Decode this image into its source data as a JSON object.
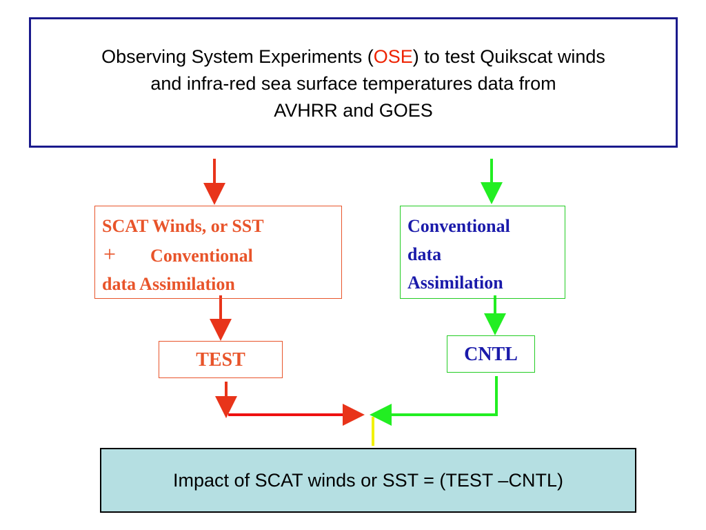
{
  "title": {
    "line1_start": "Observing System Experiments (",
    "highlight": "OSE",
    "line1_end": ") to test Quikscat winds",
    "line2": "and infra-red sea surface temperatures data from",
    "line3": "AVHRR and GOES"
  },
  "nodes": [
    {
      "lines": [
        "SCAT Winds, or SST",
        "+",
        "Conventional",
        "data Assimilation"
      ]
    },
    {
      "lines": [
        "Conventional",
        "data",
        "Assimilation"
      ]
    },
    {
      "label": "TEST"
    },
    {
      "label": "CNTL"
    },
    {
      "label": "Impact of SCAT winds or SST = (TEST –CNTL)"
    }
  ]
}
